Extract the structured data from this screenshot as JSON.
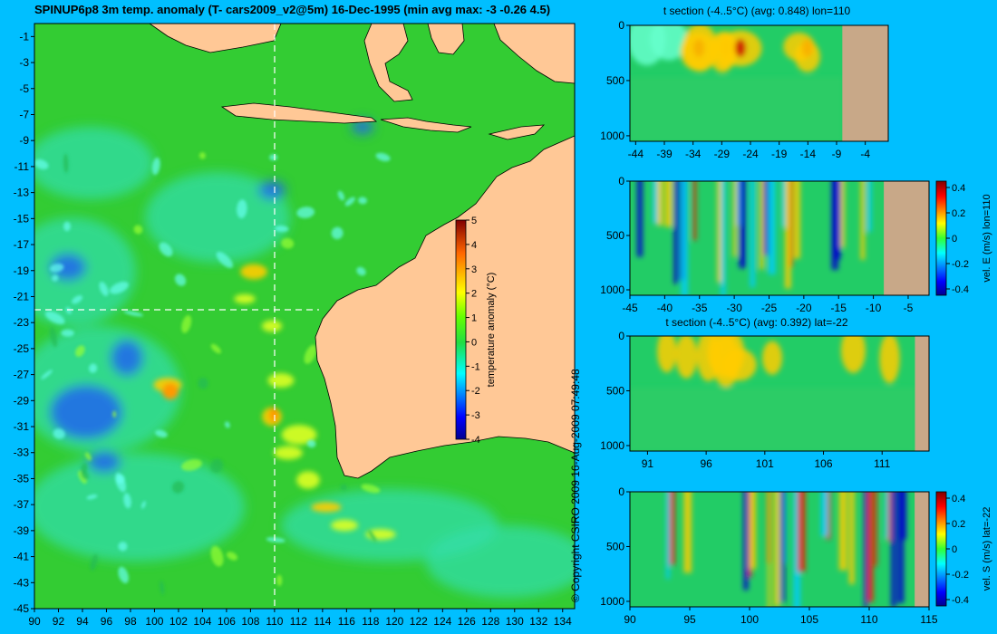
{
  "title": "SPINUP6p8 3m temp. anomaly (T- cars2009_v2@5m) 16-Dec-1995 (min avg max: -3 -0.26 4.5)",
  "copyright": "© Copyright CSIRO 2009  16-Aug-2009 07:49:48",
  "colors": {
    "background": "#00bfff",
    "land": "#ffc896",
    "section_land": "#c8a888",
    "transect": "#ffffff"
  },
  "chart_data": [
    {
      "type": "heatmap",
      "title": "SPINUP6p8 3m temp. anomaly (T- cars2009_v2@5m) 16-Dec-1995 (min avg max: -3 -0.26 4.5)",
      "xlim": [
        90,
        135
      ],
      "ylim": [
        -45,
        0
      ],
      "x_ticks": [
        "90",
        "92",
        "94",
        "96",
        "98",
        "100",
        "102",
        "104",
        "106",
        "108",
        "110",
        "112",
        "114",
        "116",
        "118",
        "120",
        "122",
        "124",
        "126",
        "128",
        "130",
        "132",
        "134"
      ],
      "y_ticks": [
        "-1",
        "-3",
        "-5",
        "-7",
        "-9",
        "-11",
        "-13",
        "-15",
        "-17",
        "-19",
        "-21",
        "-23",
        "-25",
        "-27",
        "-29",
        "-31",
        "-33",
        "-35",
        "-37",
        "-39",
        "-41",
        "-43",
        "-45"
      ],
      "transect_lon": 110,
      "transect_lat": -22,
      "colorbar": {
        "label": "temperature anomaly (°C)",
        "range": [
          -4,
          5
        ],
        "ticks": [
          "-4",
          "-3",
          "-2",
          "-1",
          "0",
          "1",
          "2",
          "3",
          "4",
          "5"
        ]
      }
    },
    {
      "type": "heatmap",
      "title": "t section (-4..5°C) (avg: 0.848) lon=110",
      "xlim": [
        -45,
        0
      ],
      "ylim": [
        1050,
        0
      ],
      "x_ticks": [
        "-44",
        "-39",
        "-34",
        "-29",
        "-24",
        "-19",
        "-14",
        "-9",
        "-4"
      ],
      "y_ticks": [
        "0",
        "500",
        "1000"
      ]
    },
    {
      "type": "heatmap",
      "title": "",
      "xlim": [
        -45,
        -2
      ],
      "ylim": [
        1050,
        0
      ],
      "x_ticks": [
        "-45",
        "-40",
        "-35",
        "-30",
        "-25",
        "-20",
        "-15",
        "-10",
        "-5"
      ],
      "y_ticks": [
        "0",
        "500",
        "1000"
      ],
      "colorbar": {
        "label": "vel. E (m/s) lon=110",
        "range": [
          -0.45,
          0.45
        ],
        "ticks": [
          "-0.4",
          "-0.2",
          "0",
          "0.2",
          "0.4"
        ]
      }
    },
    {
      "type": "heatmap",
      "title": "t section (-4..5°C) (avg: 0.392) lat=-22",
      "xlim": [
        89.5,
        115
      ],
      "ylim": [
        1050,
        0
      ],
      "x_ticks": [
        "91",
        "96",
        "101",
        "106",
        "111"
      ],
      "y_ticks": [
        "0",
        "500",
        "1000"
      ]
    },
    {
      "type": "heatmap",
      "title": "",
      "xlim": [
        90,
        115
      ],
      "ylim": [
        1050,
        0
      ],
      "x_ticks": [
        "90",
        "95",
        "100",
        "105",
        "110",
        "115"
      ],
      "y_ticks": [
        "0",
        "500",
        "1000"
      ],
      "colorbar": {
        "label": "vel. S (m/s) lat=-22",
        "range": [
          -0.45,
          0.45
        ],
        "ticks": [
          "-0.4",
          "-0.2",
          "0",
          "0.2",
          "0.4"
        ]
      }
    }
  ]
}
